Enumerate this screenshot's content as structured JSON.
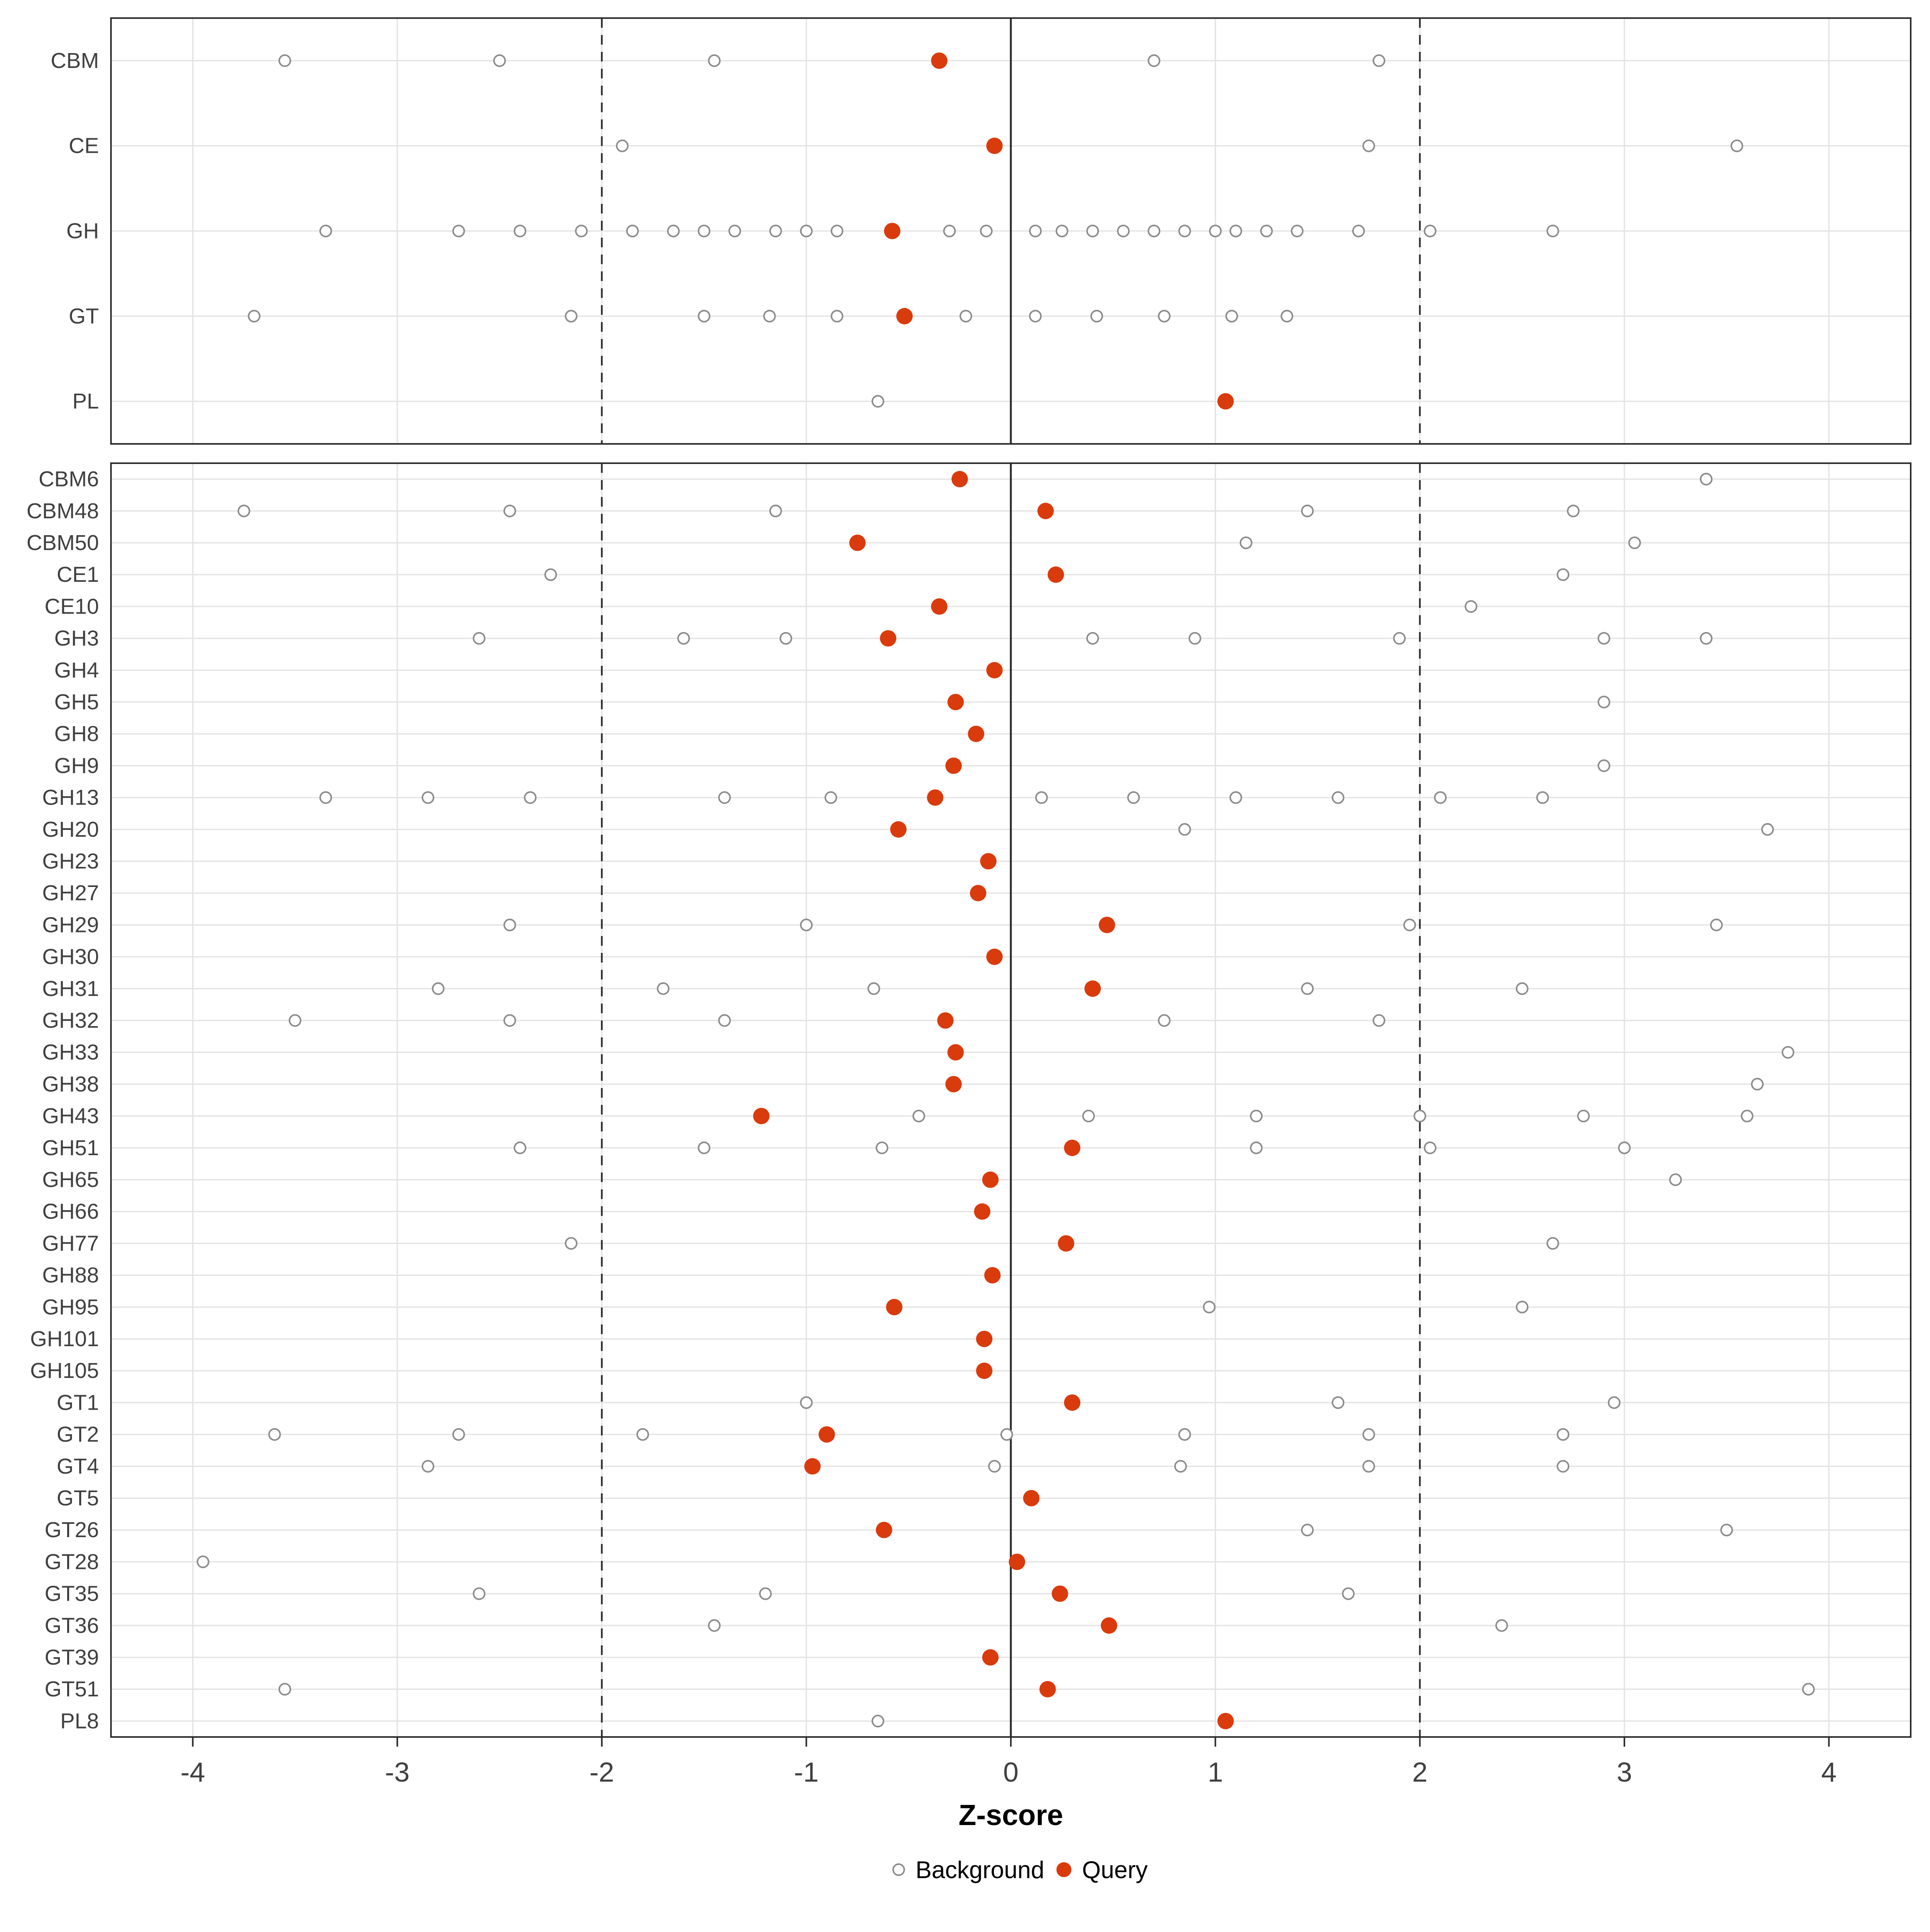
{
  "chart_data": {
    "type": "scatter",
    "title": "",
    "xlabel": "Z-score",
    "x_ticks": [
      -4,
      -3,
      -2,
      -1,
      0,
      1,
      2,
      3,
      4
    ],
    "xlim": [
      -4.4,
      4.4
    ],
    "grid": "major-only",
    "legend_position": "bottom",
    "reference_lines": {
      "solid": [
        0
      ],
      "dashed": [
        -2,
        2
      ]
    },
    "legend": [
      {
        "label": "Background",
        "type": "open-circle"
      },
      {
        "label": "Query",
        "type": "filled-circle"
      }
    ],
    "colors": {
      "query": "#D93B0D",
      "background_stroke": "#8C8C8C",
      "grid": "#E4E4E4",
      "panel_border": "#2B2B2B",
      "ref_line": "#2B2B2B",
      "axis_text": "#404040"
    },
    "panels": [
      {
        "name": "family-class",
        "rows": [
          {
            "label": "CBM",
            "query": -0.35,
            "background": [
              -3.55,
              -2.5,
              -1.45,
              0.7,
              1.8
            ]
          },
          {
            "label": "CE",
            "query": -0.08,
            "background": [
              -1.9,
              1.75,
              3.55
            ]
          },
          {
            "label": "GH",
            "query": -0.58,
            "background": [
              -3.35,
              -2.7,
              -2.4,
              -2.1,
              -1.85,
              -1.65,
              -1.5,
              -1.35,
              -1.15,
              -1.0,
              -0.85,
              -0.3,
              -0.12,
              0.12,
              0.25,
              0.4,
              0.55,
              0.7,
              0.85,
              1.0,
              1.1,
              1.25,
              1.4,
              1.7,
              2.05,
              2.65
            ]
          },
          {
            "label": "GT",
            "query": -0.52,
            "background": [
              -3.7,
              -2.15,
              -1.5,
              -1.18,
              -0.85,
              -0.22,
              0.12,
              0.42,
              0.75,
              1.08,
              1.35
            ]
          },
          {
            "label": "PL",
            "query": 1.05,
            "background": [
              -0.65
            ]
          }
        ]
      },
      {
        "name": "family-detail",
        "rows": [
          {
            "label": "CBM6",
            "query": -0.25,
            "background": [
              3.4
            ]
          },
          {
            "label": "CBM48",
            "query": 0.17,
            "background": [
              -3.75,
              -2.45,
              -1.15,
              1.45,
              2.75
            ]
          },
          {
            "label": "CBM50",
            "query": -0.75,
            "background": [
              1.15,
              3.05
            ]
          },
          {
            "label": "CE1",
            "query": 0.22,
            "background": [
              -2.25,
              2.7
            ]
          },
          {
            "label": "CE10",
            "query": -0.35,
            "background": [
              2.25
            ]
          },
          {
            "label": "GH3",
            "query": -0.6,
            "background": [
              -2.6,
              -1.6,
              -1.1,
              0.4,
              0.9,
              1.9,
              2.9,
              3.4
            ]
          },
          {
            "label": "GH4",
            "query": -0.08,
            "background": []
          },
          {
            "label": "GH5",
            "query": -0.27,
            "background": [
              2.9
            ]
          },
          {
            "label": "GH8",
            "query": -0.17,
            "background": []
          },
          {
            "label": "GH9",
            "query": -0.28,
            "background": [
              2.9
            ]
          },
          {
            "label": "GH13",
            "query": -0.37,
            "background": [
              -3.35,
              -2.85,
              -2.35,
              -1.4,
              -0.88,
              0.15,
              0.6,
              1.1,
              1.6,
              2.1,
              2.6
            ]
          },
          {
            "label": "GH20",
            "query": -0.55,
            "background": [
              0.85,
              3.7
            ]
          },
          {
            "label": "GH23",
            "query": -0.11,
            "background": []
          },
          {
            "label": "GH27",
            "query": -0.16,
            "background": []
          },
          {
            "label": "GH29",
            "query": 0.47,
            "background": [
              -2.45,
              -1.0,
              1.95,
              3.45
            ]
          },
          {
            "label": "GH30",
            "query": -0.08,
            "background": []
          },
          {
            "label": "GH31",
            "query": 0.4,
            "background": [
              -2.8,
              -1.7,
              -0.67,
              1.45,
              2.5
            ]
          },
          {
            "label": "GH32",
            "query": -0.32,
            "background": [
              -3.5,
              -2.45,
              -1.4,
              0.75,
              1.8
            ]
          },
          {
            "label": "GH33",
            "query": -0.27,
            "background": [
              3.8
            ]
          },
          {
            "label": "GH38",
            "query": -0.28,
            "background": [
              3.65
            ]
          },
          {
            "label": "GH43",
            "query": -1.22,
            "background": [
              -0.45,
              0.38,
              1.2,
              2.0,
              2.8,
              3.6
            ]
          },
          {
            "label": "GH51",
            "query": 0.3,
            "background": [
              -2.4,
              -1.5,
              -0.63,
              1.2,
              2.05,
              3.0
            ]
          },
          {
            "label": "GH65",
            "query": -0.1,
            "background": [
              3.25
            ]
          },
          {
            "label": "GH66",
            "query": -0.14,
            "background": []
          },
          {
            "label": "GH77",
            "query": 0.27,
            "background": [
              -2.15,
              2.65
            ]
          },
          {
            "label": "GH88",
            "query": -0.09,
            "background": []
          },
          {
            "label": "GH95",
            "query": -0.57,
            "background": [
              0.97,
              2.5
            ]
          },
          {
            "label": "GH101",
            "query": -0.13,
            "background": []
          },
          {
            "label": "GH105",
            "query": -0.13,
            "background": []
          },
          {
            "label": "GT1",
            "query": 0.3,
            "background": [
              -1.0,
              1.6,
              2.95
            ]
          },
          {
            "label": "GT2",
            "query": -0.9,
            "background": [
              -3.6,
              -2.7,
              -1.8,
              -0.02,
              0.85,
              1.75,
              2.7
            ]
          },
          {
            "label": "GT4",
            "query": -0.97,
            "background": [
              -2.85,
              -0.08,
              0.83,
              1.75,
              2.7
            ]
          },
          {
            "label": "GT5",
            "query": 0.1,
            "background": []
          },
          {
            "label": "GT26",
            "query": -0.62,
            "background": [
              1.45,
              3.5
            ]
          },
          {
            "label": "GT28",
            "query": 0.03,
            "background": [
              -3.95
            ]
          },
          {
            "label": "GT35",
            "query": 0.24,
            "background": [
              -2.6,
              -1.2,
              1.65
            ]
          },
          {
            "label": "GT36",
            "query": 0.48,
            "background": [
              -1.45,
              2.4
            ]
          },
          {
            "label": "GT39",
            "query": -0.1,
            "background": []
          },
          {
            "label": "GT51",
            "query": 0.18,
            "background": [
              -3.55,
              3.9
            ]
          },
          {
            "label": "PL8",
            "query": 1.05,
            "background": [
              -0.65
            ]
          }
        ]
      }
    ]
  }
}
